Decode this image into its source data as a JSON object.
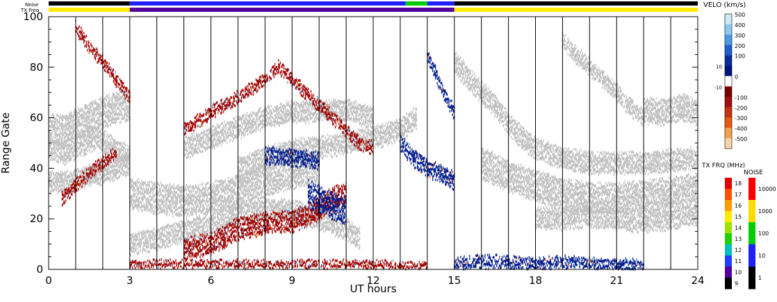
{
  "chart_data": {
    "type": "heatmap",
    "title": "",
    "xlabel": "UT hours",
    "ylabel": "Range Gate",
    "x_range": [
      0,
      24
    ],
    "y_range": [
      0,
      100
    ],
    "x_ticks": [
      "0",
      "3",
      "6",
      "9",
      "12",
      "15",
      "18",
      "21",
      "24"
    ],
    "y_ticks": [
      "0",
      "20",
      "40",
      "60",
      "80",
      "100"
    ],
    "minor_x_step_hours": 1,
    "grid": "vertical lines every hour",
    "strip_labels": {
      "noise": "Noise",
      "tx_freq": "TX Freq"
    },
    "tx_freq_strip": [
      {
        "start": 0,
        "end": 3,
        "freq_mhz": 15
      },
      {
        "start": 3,
        "end": 15,
        "freq_mhz": 10
      },
      {
        "start": 15,
        "end": 24,
        "freq_mhz": 15
      }
    ],
    "noise_strip": [
      {
        "start": 0,
        "end": 3,
        "level": 1
      },
      {
        "start": 3,
        "end": 13.2,
        "level": 10
      },
      {
        "start": 13.2,
        "end": 14,
        "level": 100
      },
      {
        "start": 14,
        "end": 15,
        "level": 10
      },
      {
        "start": 15,
        "end": 24,
        "level": 1
      }
    ],
    "velocity_colorbar": {
      "title": "VELO (km/s)",
      "ticks": [
        "500",
        "400",
        "300",
        "200",
        "100",
        "10",
        "0",
        "-10",
        "-100",
        "-200",
        "-300",
        "-400",
        "-500"
      ],
      "colors": [
        "#cfe8f5",
        "#8fc8ef",
        "#4a9be0",
        "#1f5fcf",
        "#0a2c9c",
        "#00157a",
        "#ffffff",
        "#7a0000",
        "#a01010",
        "#c83010",
        "#e85a10",
        "#f5a050",
        "#f8d2a8"
      ]
    },
    "txfreq_colorbar": {
      "title": "TX FRQ (MHz)",
      "ticks": [
        "18",
        "17",
        "16",
        "15",
        "14",
        "13",
        "12",
        "11",
        "10",
        "9"
      ],
      "colors": [
        "#e00000",
        "#ff5000",
        "#ff9a00",
        "#ffea00",
        "#a0e000",
        "#20d000",
        "#00c0c0",
        "#2040ff",
        "#5000a0",
        "#000000"
      ]
    },
    "noise_colorbar": {
      "title": "NOISE",
      "ticks": [
        "10000",
        "1000",
        "100",
        "10",
        "1"
      ],
      "colors": [
        "#ff0000",
        "#ffdd00",
        "#00cc00",
        "#2020ff",
        "#000000"
      ]
    },
    "colors": {
      "ground_scatter": "#c0c0c0",
      "toward": "#001a8c",
      "away": "#a00000"
    },
    "features": [
      {
        "name": "ground scatter band",
        "kind": "ground",
        "points": [
          [
            0,
            35
          ],
          [
            0.5,
            34
          ],
          [
            1,
            35
          ],
          [
            1.5,
            37
          ],
          [
            2,
            38
          ],
          [
            2.5,
            40
          ],
          [
            3,
            42
          ]
        ],
        "width": 4
      },
      {
        "name": "ground scatter band",
        "kind": "ground",
        "points": [
          [
            0,
            55
          ],
          [
            0.5,
            55
          ],
          [
            1,
            57
          ],
          [
            1.5,
            60
          ],
          [
            2,
            62
          ],
          [
            2.5,
            64
          ],
          [
            3,
            65
          ]
        ],
        "width": 6
      },
      {
        "name": "ground scatter band",
        "kind": "ground",
        "points": [
          [
            0,
            48
          ],
          [
            0.6,
            46
          ],
          [
            1.2,
            49
          ],
          [
            1.8,
            52
          ],
          [
            2.4,
            48
          ],
          [
            3,
            44
          ]
        ],
        "width": 4
      },
      {
        "name": "ground scatter band",
        "kind": "ground",
        "points": [
          [
            3,
            30
          ],
          [
            4,
            28
          ],
          [
            5,
            27
          ],
          [
            6,
            28
          ],
          [
            7,
            31
          ],
          [
            8,
            35
          ],
          [
            9,
            38
          ],
          [
            10,
            40
          ]
        ],
        "width": 6
      },
      {
        "name": "ground scatter band",
        "kind": "ground",
        "points": [
          [
            3,
            10
          ],
          [
            4,
            12
          ],
          [
            5,
            15
          ],
          [
            6,
            18
          ],
          [
            7,
            22
          ],
          [
            8,
            24
          ],
          [
            9,
            23
          ],
          [
            10,
            20
          ],
          [
            11,
            16
          ],
          [
            11.5,
            12
          ]
        ],
        "width": 4
      },
      {
        "name": "ground scatter band",
        "kind": "ground",
        "points": [
          [
            5,
            48
          ],
          [
            6,
            52
          ],
          [
            7,
            56
          ],
          [
            8,
            60
          ],
          [
            9,
            62
          ],
          [
            10,
            63
          ],
          [
            11,
            63
          ],
          [
            12,
            60
          ]
        ],
        "width": 4
      },
      {
        "name": "ground scatter band",
        "kind": "ground",
        "points": [
          [
            7,
            40
          ],
          [
            8,
            44
          ],
          [
            9,
            47
          ],
          [
            10,
            48
          ],
          [
            11,
            50
          ],
          [
            12,
            52
          ],
          [
            13,
            55
          ],
          [
            13.6,
            60
          ]
        ],
        "width": 4
      },
      {
        "name": "ground scatter band",
        "kind": "ground",
        "points": [
          [
            15,
            82
          ],
          [
            15.5,
            76
          ],
          [
            16,
            70
          ],
          [
            16.5,
            65
          ],
          [
            17,
            58
          ],
          [
            17.5,
            52
          ],
          [
            18,
            48
          ],
          [
            19,
            44
          ],
          [
            20,
            42
          ],
          [
            21,
            42
          ],
          [
            22,
            42
          ],
          [
            23,
            43
          ],
          [
            24,
            44
          ]
        ],
        "width": 4
      },
      {
        "name": "ground scatter band",
        "kind": "ground",
        "points": [
          [
            16,
            42
          ],
          [
            17,
            37
          ],
          [
            18,
            33
          ],
          [
            19,
            30
          ],
          [
            20,
            28
          ],
          [
            21,
            28
          ],
          [
            22,
            29
          ],
          [
            23,
            30
          ],
          [
            24,
            32
          ]
        ],
        "width": 6
      },
      {
        "name": "ground scatter band",
        "kind": "ground",
        "points": [
          [
            18,
            20
          ],
          [
            19,
            20
          ],
          [
            20,
            21
          ],
          [
            21,
            20
          ],
          [
            22,
            19
          ],
          [
            23,
            20
          ],
          [
            24,
            22
          ]
        ],
        "width": 4
      },
      {
        "name": "ground scatter band",
        "kind": "ground",
        "points": [
          [
            19,
            90
          ],
          [
            19.5,
            85
          ],
          [
            20,
            80
          ],
          [
            20.5,
            75
          ],
          [
            21,
            70
          ],
          [
            21.5,
            64
          ],
          [
            22,
            60
          ]
        ],
        "width": 3
      },
      {
        "name": "ground scatter band",
        "kind": "ground",
        "points": [
          [
            22,
            63
          ],
          [
            22.5,
            62
          ],
          [
            23,
            63
          ],
          [
            23.5,
            64
          ],
          [
            24,
            62
          ]
        ],
        "width": 5
      },
      {
        "name": "strong echo band",
        "kind": "away",
        "points": [
          [
            5,
            8
          ],
          [
            6,
            10
          ],
          [
            6.5,
            13
          ],
          [
            7,
            16
          ],
          [
            8,
            18
          ],
          [
            9,
            19
          ],
          [
            9.5,
            21
          ],
          [
            10,
            24
          ],
          [
            10.5,
            28
          ],
          [
            11,
            30
          ]
        ],
        "width": 4
      },
      {
        "name": "strong echo band",
        "kind": "toward",
        "points": [
          [
            9.6,
            30
          ],
          [
            10,
            28
          ],
          [
            10.5,
            25
          ],
          [
            11,
            23
          ]
        ],
        "width": 5
      },
      {
        "name": "strong echo band",
        "kind": "away",
        "points": [
          [
            1,
            96
          ],
          [
            1.5,
            88
          ],
          [
            2,
            82
          ],
          [
            2.5,
            75
          ],
          [
            3,
            68
          ]
        ],
        "width": 2
      },
      {
        "name": "strong echo band",
        "kind": "away",
        "points": [
          [
            5,
            55
          ],
          [
            6,
            62
          ],
          [
            7,
            68
          ],
          [
            8,
            75
          ],
          [
            8.5,
            80
          ],
          [
            9,
            75
          ],
          [
            9.5,
            70
          ],
          [
            10,
            65
          ],
          [
            10.5,
            60
          ],
          [
            11,
            55
          ],
          [
            11.5,
            50
          ],
          [
            12,
            48
          ]
        ],
        "width": 2
      },
      {
        "name": "strong echo band",
        "kind": "toward",
        "points": [
          [
            14,
            85
          ],
          [
            14.3,
            78
          ],
          [
            14.6,
            70
          ],
          [
            15,
            62
          ]
        ],
        "width": 2
      },
      {
        "name": "strong echo band",
        "kind": "toward",
        "points": [
          [
            13,
            50
          ],
          [
            13.5,
            44
          ],
          [
            14,
            40
          ],
          [
            14.5,
            38
          ],
          [
            15,
            35
          ]
        ],
        "width": 3
      },
      {
        "name": "strong echo band",
        "kind": "toward",
        "points": [
          [
            8,
            45
          ],
          [
            9,
            44
          ],
          [
            10,
            43
          ]
        ],
        "width": 3
      },
      {
        "name": "strong echo band",
        "kind": "away",
        "points": [
          [
            0.5,
            28
          ],
          [
            1,
            33
          ],
          [
            1.5,
            38
          ],
          [
            2,
            42
          ],
          [
            2.5,
            46
          ]
        ],
        "width": 2
      },
      {
        "name": "near-range echoes",
        "kind": "toward",
        "points": [
          [
            15,
            2
          ],
          [
            16,
            3
          ],
          [
            17,
            3
          ],
          [
            18,
            2
          ],
          [
            19,
            3
          ],
          [
            20,
            2
          ],
          [
            21,
            2
          ],
          [
            22,
            1
          ]
        ],
        "width": 2
      },
      {
        "name": "near-range echoes",
        "kind": "away",
        "points": [
          [
            3,
            2
          ],
          [
            6,
            2
          ],
          [
            9,
            2
          ],
          [
            12,
            2
          ],
          [
            14,
            1
          ]
        ],
        "width": 1
      }
    ]
  }
}
